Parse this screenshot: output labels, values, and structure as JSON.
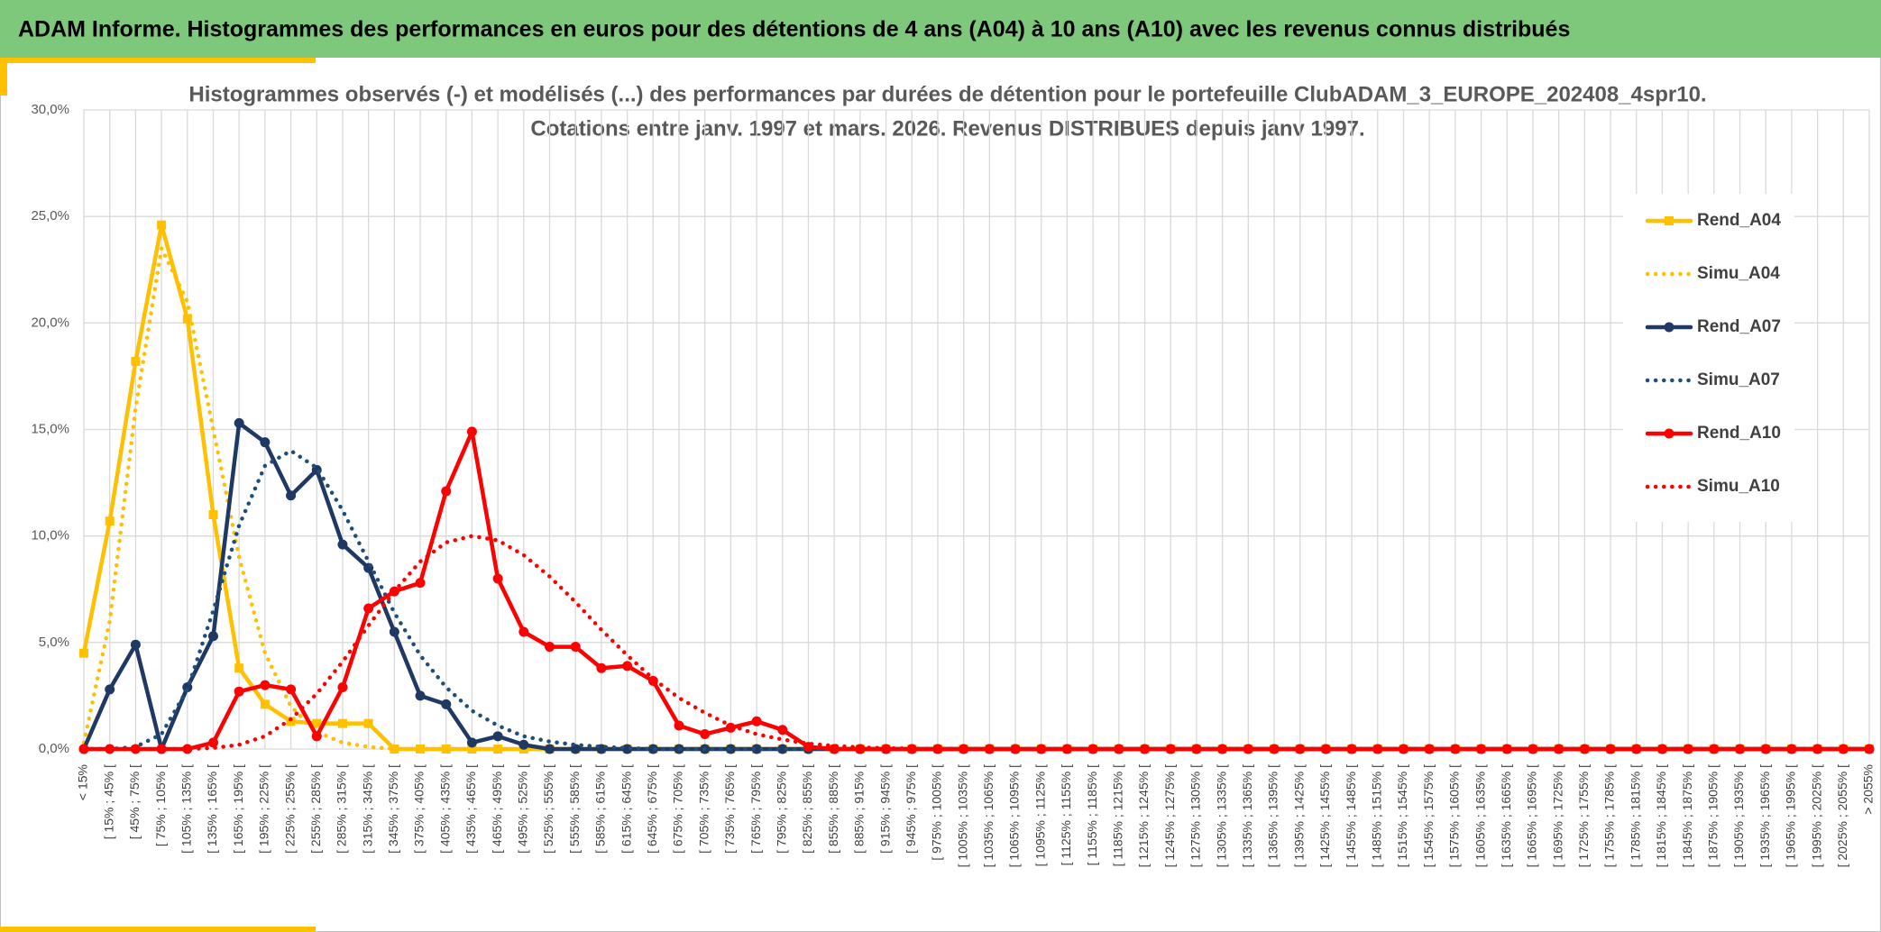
{
  "header": {
    "title": "ADAM Informe. Histogrammes des performances en euros pour des détentions de 4 ans (A04) à 10 ans (A10) avec les revenus connus distribués"
  },
  "chart_data": {
    "type": "line",
    "title": "Histogrammes observés (-) et modélisés (...) des performances par durées de détention pour le portefeuille ClubADAM_3_EUROPE_202408_4spr10.",
    "subtitle": "Cotations entre janv. 1997 et mars. 2026. Revenus DISTRIBUES depuis janv 1997.",
    "categories": [
      "< 15%",
      "[ 15% ; 45% [",
      "[ 45% ; 75% [",
      "[ 75% ; 105% [",
      "[ 105% ; 135% [",
      "[ 135% ; 165% [",
      "[ 165% ; 195% [",
      "[ 195% ; 225% [",
      "[ 225% ; 255% [",
      "[ 255% ; 285% [",
      "[ 285% ; 315% [",
      "[ 315% ; 345% [",
      "[ 345% ; 375% [",
      "[ 375% ; 405% [",
      "[ 405% ; 435% [",
      "[ 435% ; 465% [",
      "[ 465% ; 495% [",
      "[ 495% ; 525% [",
      "[ 525% ; 555% [",
      "[ 555% ; 585% [",
      "[ 585% ; 615% [",
      "[ 615% ; 645% [",
      "[ 645% ; 675% [",
      "[ 675% ; 705% [",
      "[ 705% ; 735% [",
      "[ 735% ; 765% [",
      "[ 765% ; 795% [",
      "[ 795% ; 825% [",
      "[ 825% ; 855% [",
      "[ 855% ; 885% [",
      "[ 885% ; 915% [",
      "[ 915% ; 945% [",
      "[ 945% ; 975% [",
      "[ 975% ; 1005% [",
      "[ 1005% ; 1035% [",
      "[ 1035% ; 1065% [",
      "[ 1065% ; 1095% [",
      "[ 1095% ; 1125% [",
      "[ 1125% ; 1155% [",
      "[ 1155% ; 1185% [",
      "[ 1185% ; 1215% [",
      "[ 1215% ; 1245% [",
      "[ 1245% ; 1275% [",
      "[ 1275% ; 1305% [",
      "[ 1305% ; 1335% [",
      "[ 1335% ; 1365% [",
      "[ 1365% ; 1395% [",
      "[ 1395% ; 1425% [",
      "[ 1425% ; 1455% [",
      "[ 1455% ; 1485% [",
      "[ 1485% ; 1515% [",
      "[ 1515% ; 1545% [",
      "[ 1545% ; 1575% [",
      "[ 1575% ; 1605% [",
      "[ 1605% ; 1635% [",
      "[ 1635% ; 1665% [",
      "[ 1665% ; 1695% [",
      "[ 1695% ; 1725% [",
      "[ 1725% ; 1755% [",
      "[ 1755% ; 1785% [",
      "[ 1785% ; 1815% [",
      "[ 1815% ; 1845% [",
      "[ 1845% ; 1875% [",
      "[ 1875% ; 1905% [",
      "[ 1905% ; 1935% [",
      "[ 1935% ; 1965% [",
      "[ 1965% ; 1995% [",
      "[ 1995% ; 2025% [",
      "[ 2025% ; 2055% [",
      "> 2055%"
    ],
    "series": [
      {
        "name": "Rend_A04",
        "color": "#ffc000",
        "style": "solid",
        "marker": "square",
        "values": [
          4.5,
          10.7,
          18.2,
          24.6,
          20.2,
          11.0,
          3.8,
          2.1,
          1.3,
          1.2,
          1.2,
          1.2,
          0,
          0,
          0,
          0,
          0,
          0,
          0,
          0,
          0,
          0,
          0,
          0,
          0,
          0,
          0,
          0,
          0,
          0,
          0,
          0,
          0,
          0,
          0,
          0,
          0,
          0,
          0,
          0,
          0,
          0,
          0,
          0,
          0,
          0,
          0,
          0,
          0,
          0,
          0,
          0,
          0,
          0,
          0,
          0,
          0,
          0,
          0,
          0,
          0,
          0,
          0,
          0,
          0,
          0,
          0,
          0,
          0,
          0
        ]
      },
      {
        "name": "Simu_A04",
        "color": "#ffc000",
        "style": "dotted",
        "values": [
          0.3,
          6,
          16,
          23.5,
          21,
          15,
          9,
          4.5,
          2,
          0.8,
          0.3,
          0.1,
          0,
          0,
          0,
          0,
          0,
          0,
          0,
          0,
          0,
          0,
          0,
          0,
          0,
          0,
          0,
          0,
          0,
          0,
          0,
          0,
          0,
          0,
          0,
          0,
          0,
          0,
          0,
          0,
          0,
          0,
          0,
          0,
          0,
          0,
          0,
          0,
          0,
          0,
          0,
          0,
          0,
          0,
          0,
          0,
          0,
          0,
          0,
          0,
          0,
          0,
          0,
          0,
          0,
          0,
          0,
          0,
          0,
          0
        ]
      },
      {
        "name": "Rend_A07",
        "color": "#1f3864",
        "style": "solid",
        "marker": "circle",
        "values": [
          0,
          2.8,
          4.9,
          0,
          2.9,
          5.3,
          15.3,
          14.4,
          11.9,
          13.1,
          9.6,
          8.5,
          5.5,
          2.5,
          2.1,
          0.3,
          0.6,
          0.2,
          0,
          0,
          0,
          0,
          0,
          0,
          0,
          0,
          0,
          0,
          0,
          0,
          0,
          0,
          0,
          0,
          0,
          0,
          0,
          0,
          0,
          0,
          0,
          0,
          0,
          0,
          0,
          0,
          0,
          0,
          0,
          0,
          0,
          0,
          0,
          0,
          0,
          0,
          0,
          0,
          0,
          0,
          0,
          0,
          0,
          0,
          0,
          0,
          0,
          0,
          0,
          0
        ]
      },
      {
        "name": "Simu_A07",
        "color": "#1f4e79",
        "style": "dotted",
        "values": [
          0,
          0,
          0.1,
          0.7,
          2.8,
          6.5,
          10.5,
          13.3,
          14,
          13.2,
          11.2,
          8.8,
          6.4,
          4.4,
          2.9,
          1.8,
          1.1,
          0.6,
          0.35,
          0.2,
          0.1,
          0.05,
          0,
          0,
          0,
          0,
          0,
          0,
          0,
          0,
          0,
          0,
          0,
          0,
          0,
          0,
          0,
          0,
          0,
          0,
          0,
          0,
          0,
          0,
          0,
          0,
          0,
          0,
          0,
          0,
          0,
          0,
          0,
          0,
          0,
          0,
          0,
          0,
          0,
          0,
          0,
          0,
          0,
          0,
          0,
          0,
          0,
          0,
          0,
          0
        ]
      },
      {
        "name": "Rend_A10",
        "color": "#ff0000",
        "style": "solid",
        "marker": "circle",
        "values": [
          0,
          0,
          0,
          0,
          0,
          0.3,
          2.7,
          3.0,
          2.8,
          0.6,
          2.9,
          6.6,
          7.4,
          7.8,
          12.1,
          14.9,
          8.0,
          5.5,
          4.8,
          4.8,
          3.8,
          3.9,
          3.2,
          1.1,
          0.7,
          1.0,
          1.3,
          0.9,
          0.1,
          0,
          0,
          0,
          0,
          0,
          0,
          0,
          0,
          0,
          0,
          0,
          0,
          0,
          0,
          0,
          0,
          0,
          0,
          0,
          0,
          0,
          0,
          0,
          0,
          0,
          0,
          0,
          0,
          0,
          0,
          0,
          0,
          0,
          0,
          0,
          0,
          0,
          0,
          0,
          0,
          0
        ]
      },
      {
        "name": "Simu_A10",
        "color": "#ff0000",
        "style": "dotted",
        "values": [
          0,
          0,
          0,
          0,
          0,
          0.05,
          0.2,
          0.6,
          1.4,
          2.6,
          4.1,
          5.8,
          7.4,
          8.8,
          9.7,
          10,
          9.8,
          9.1,
          8.1,
          6.9,
          5.6,
          4.4,
          3.3,
          2.4,
          1.7,
          1.1,
          0.7,
          0.45,
          0.25,
          0.15,
          0.08,
          0.04,
          0.02,
          0,
          0,
          0,
          0,
          0,
          0,
          0,
          0,
          0,
          0,
          0,
          0,
          0,
          0,
          0,
          0,
          0,
          0,
          0,
          0,
          0,
          0,
          0,
          0,
          0,
          0,
          0,
          0,
          0,
          0,
          0,
          0,
          0,
          0,
          0,
          0,
          0
        ]
      }
    ],
    "ylim": [
      0,
      30
    ],
    "yticks": [
      {
        "value": 0,
        "label": "0,0%"
      },
      {
        "value": 5,
        "label": "5,0%"
      },
      {
        "value": 10,
        "label": "10,0%"
      },
      {
        "value": 15,
        "label": "15,0%"
      },
      {
        "value": 20,
        "label": "20,0%"
      },
      {
        "value": 25,
        "label": "25,0%"
      },
      {
        "value": 30,
        "label": "30,0%"
      }
    ],
    "grid": true,
    "legend": "right"
  }
}
